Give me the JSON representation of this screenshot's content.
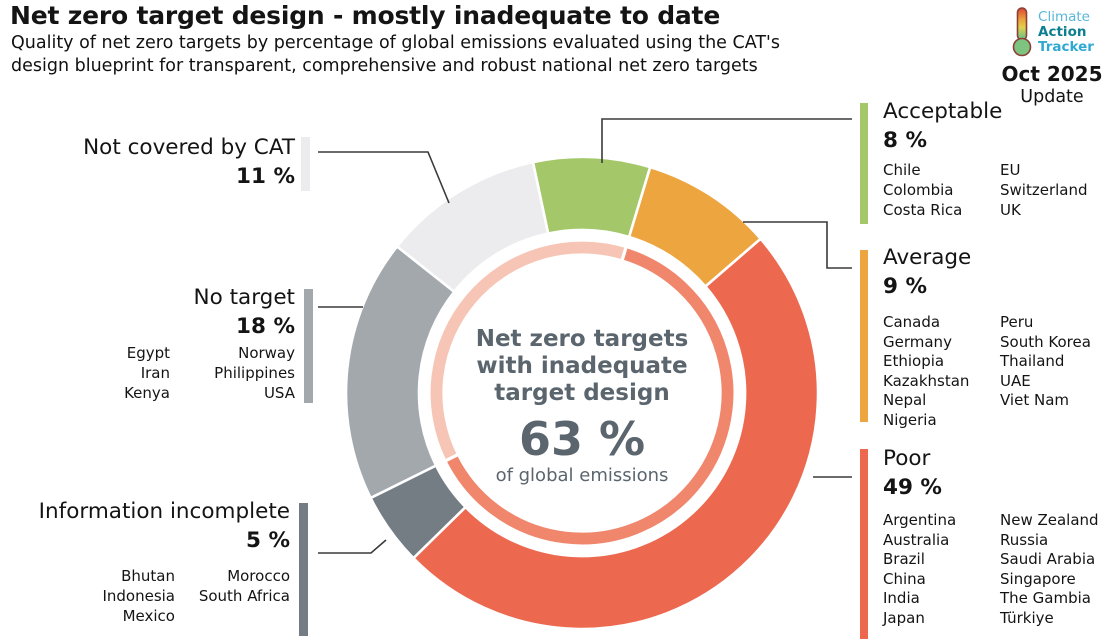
{
  "header": {
    "title": "Net zero target design - mostly inadequate to date",
    "subtitle_line1": "Quality of net zero targets by percentage of global emissions evaluated using the CAT's",
    "subtitle_line2": "design blueprint for transparent, comprehensive and robust national net zero targets",
    "logo": {
      "word1": "Climate",
      "word2": "Action",
      "word3": "Tracker"
    },
    "release": {
      "date": "Oct 2025",
      "label": "Update"
    }
  },
  "donut_center": {
    "line1": "Net zero targets",
    "line2": "with inadequate",
    "line3": "target design",
    "value": "63 %",
    "caption": "of global emissions"
  },
  "chart_data": {
    "type": "pie",
    "subtype": "donut",
    "title": "Net zero target design - mostly inadequate to date",
    "units": "% of global emissions",
    "start_angle_deg": -12,
    "direction": "clockwise",
    "segments": [
      {
        "label": "Acceptable",
        "pct": 8,
        "color": "#a4c869",
        "countries": [
          "Chile",
          "Colombia",
          "Costa Rica",
          "EU",
          "Switzerland",
          "UK"
        ]
      },
      {
        "label": "Average",
        "pct": 9,
        "color": "#eda63f",
        "countries": [
          "Canada",
          "Germany",
          "Ethiopia",
          "Kazakhstan",
          "Nepal",
          "Nigeria",
          "Peru",
          "South Korea",
          "Thailand",
          "UAE",
          "Viet Nam"
        ]
      },
      {
        "label": "Poor",
        "pct": 49,
        "color": "#ec6950",
        "countries": [
          "Argentina",
          "Australia",
          "Brazil",
          "China",
          "India",
          "Japan",
          "New Zealand",
          "Russia",
          "Saudi Arabia",
          "Singapore",
          "The Gambia",
          "Türkiye"
        ]
      },
      {
        "label": "Information incomplete",
        "pct": 5,
        "color": "#747c84",
        "countries": [
          "Bhutan",
          "Indonesia",
          "Mexico",
          "Morocco",
          "South Africa"
        ]
      },
      {
        "label": "No target",
        "pct": 18,
        "color": "#a3a8ad",
        "countries": [
          "Egypt",
          "Iran",
          "Kenya",
          "Norway",
          "Philippines",
          "USA"
        ]
      },
      {
        "label": "Not covered by CAT",
        "pct": 11,
        "color": "#ececee",
        "countries": []
      }
    ],
    "inner_ring": {
      "label": "Net zero targets with inadequate target design",
      "pct": 63,
      "caption": "of global emissions",
      "highlight_color": "#f0876d",
      "rest_color": "#f7c5b5"
    }
  },
  "callouts": {
    "acceptable": {
      "title": "Acceptable",
      "pct": "8 %",
      "col1": [
        "Chile",
        "Colombia",
        "Costa Rica"
      ],
      "col2": [
        "EU",
        "Switzerland",
        "UK"
      ]
    },
    "average": {
      "title": "Average",
      "pct": "9 %",
      "col1": [
        "Canada",
        "Germany",
        "Ethiopia",
        "Kazakhstan",
        "Nepal",
        "Nigeria"
      ],
      "col2": [
        "Peru",
        "South Korea",
        "Thailand",
        "UAE",
        "Viet Nam"
      ]
    },
    "poor": {
      "title": "Poor",
      "pct": "49 %",
      "col1": [
        "Argentina",
        "Australia",
        "Brazil",
        "China",
        "India",
        "Japan"
      ],
      "col2": [
        "New Zealand",
        "Russia",
        "Saudi Arabia",
        "Singapore",
        "The Gambia",
        "Türkiye"
      ]
    },
    "info_incomplete": {
      "title": "Information incomplete",
      "pct": "5 %",
      "col1": [
        "Bhutan",
        "Indonesia",
        "Mexico"
      ],
      "col2": [
        "Morocco",
        "South Africa"
      ]
    },
    "no_target": {
      "title": "No target",
      "pct": "18 %",
      "col1": [
        "Egypt",
        "Iran",
        "Kenya"
      ],
      "col2": [
        "Norway",
        "Philippines",
        "USA"
      ]
    },
    "not_covered": {
      "title": "Not covered by CAT",
      "pct": "11 %"
    }
  }
}
